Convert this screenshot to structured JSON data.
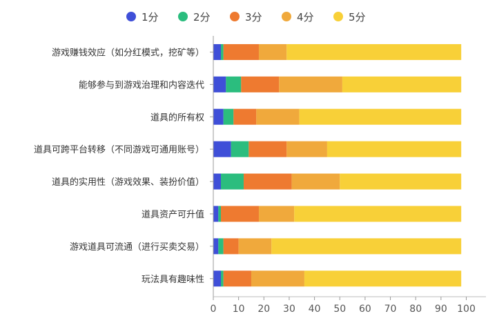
{
  "chart_data": {
    "type": "bar",
    "orientation": "horizontal",
    "stacked": true,
    "categories": [
      "游戏赚钱效应（如分红模式，挖矿等）",
      "能够参与到游戏治理和内容迭代",
      "道具的所有权",
      "道具可跨平台转移（不同游戏可通用账号）",
      "道具的实用性（游戏效果、装扮价值）",
      "道具资产可升值",
      "游戏道具可流通（进行买卖交易）",
      "玩法具有趣味性"
    ],
    "series": [
      {
        "name": "1分",
        "color": "#3f4fd8",
        "values": [
          3,
          5,
          4,
          7,
          3,
          2,
          2,
          3
        ]
      },
      {
        "name": "2分",
        "color": "#2bbd7e",
        "values": [
          1,
          6,
          4,
          7,
          9,
          1,
          2,
          1
        ]
      },
      {
        "name": "3分",
        "color": "#ee7a30",
        "values": [
          14,
          15,
          9,
          15,
          19,
          15,
          6,
          11
        ]
      },
      {
        "name": "4分",
        "color": "#f0a93c",
        "values": [
          11,
          25,
          17,
          16,
          19,
          14,
          13,
          21
        ]
      },
      {
        "name": "5分",
        "color": "#f8d038",
        "values": [
          69,
          47,
          64,
          53,
          48,
          66,
          75,
          62
        ]
      }
    ],
    "xlim": [
      0,
      100
    ],
    "xticks": [
      "0",
      "10",
      "20",
      "30",
      "40",
      "50",
      "60",
      "70",
      "80",
      "90",
      "100"
    ],
    "grid": false,
    "legend_position": "top"
  }
}
